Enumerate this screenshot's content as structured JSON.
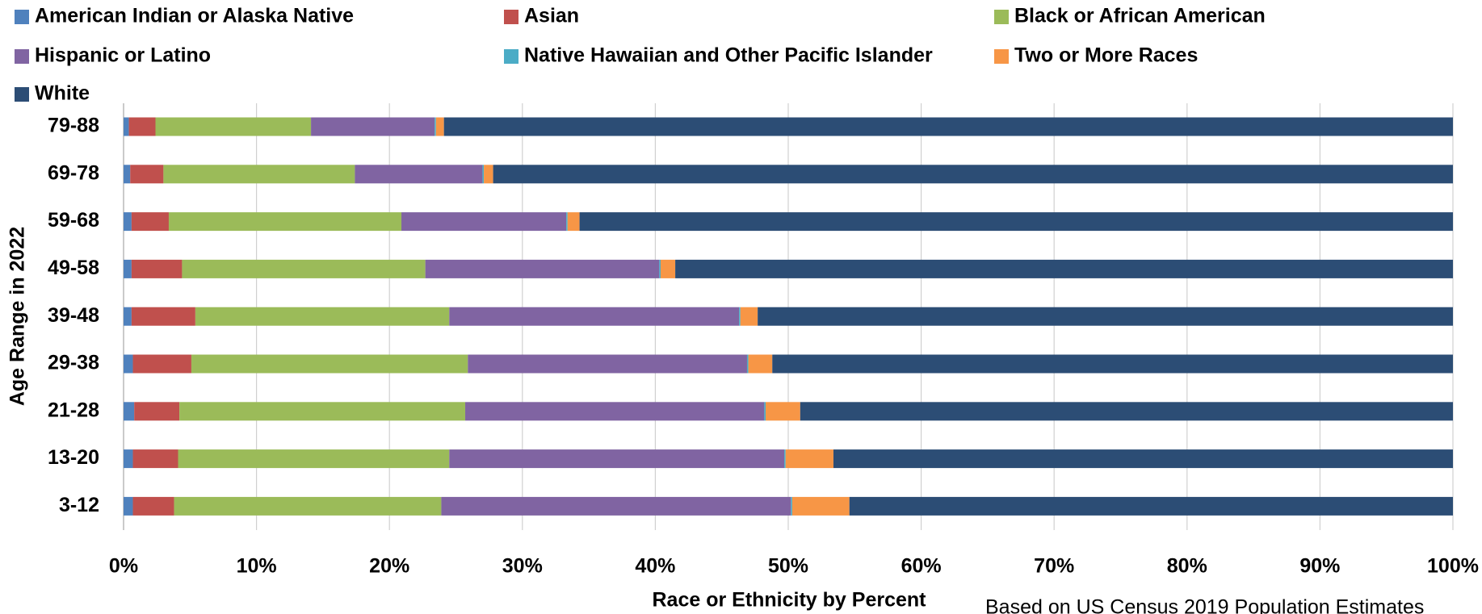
{
  "chart_data": {
    "type": "stacked_barh",
    "xlabel": "Race or Ethnicity by Percent",
    "ylabel": "Age Range in 2022",
    "note": "Based on US Census 2019 Population Estimates",
    "categories": [
      "79-88",
      "69-78",
      "59-68",
      "49-58",
      "39-48",
      "29-38",
      "21-28",
      "13-20",
      "3-12"
    ],
    "series": [
      {
        "name": "American Indian or Alaska Native",
        "color": "#4f81bd",
        "values": [
          0.4,
          0.5,
          0.6,
          0.6,
          0.6,
          0.7,
          0.8,
          0.7,
          0.7
        ]
      },
      {
        "name": "Asian",
        "color": "#c0504d",
        "values": [
          2.0,
          2.5,
          2.8,
          3.8,
          4.8,
          4.4,
          3.4,
          3.4,
          3.1
        ]
      },
      {
        "name": "Black or African American",
        "color": "#9bbb59",
        "values": [
          11.7,
          14.4,
          17.5,
          18.3,
          19.1,
          20.8,
          21.5,
          20.4,
          20.1
        ]
      },
      {
        "name": "Hispanic or Latino",
        "color": "#8064a2",
        "values": [
          9.3,
          9.6,
          12.4,
          17.6,
          21.8,
          21.0,
          22.5,
          25.2,
          26.3
        ]
      },
      {
        "name": "Native Hawaiian and Other Pacific Islander",
        "color": "#4bacc6",
        "values": [
          0.1,
          0.1,
          0.1,
          0.1,
          0.1,
          0.1,
          0.1,
          0.1,
          0.1
        ]
      },
      {
        "name": "Two or More Races",
        "color": "#f79646",
        "values": [
          0.6,
          0.7,
          0.9,
          1.1,
          1.3,
          1.8,
          2.6,
          3.6,
          4.3
        ]
      },
      {
        "name": "White",
        "color": "#2c4d75",
        "values": [
          75.9,
          72.2,
          65.7,
          58.5,
          52.3,
          51.2,
          49.1,
          46.6,
          45.4
        ]
      }
    ],
    "xlim": [
      0,
      100
    ],
    "xticks": [
      {
        "value": 0,
        "label": "0%"
      },
      {
        "value": 10,
        "label": "10%"
      },
      {
        "value": 20,
        "label": "20%"
      },
      {
        "value": 30,
        "label": "30%"
      },
      {
        "value": 40,
        "label": "40%"
      },
      {
        "value": 50,
        "label": "50%"
      },
      {
        "value": 60,
        "label": "60%"
      },
      {
        "value": 70,
        "label": "70%"
      },
      {
        "value": 80,
        "label": "80%"
      },
      {
        "value": 90,
        "label": "90%"
      },
      {
        "value": 100,
        "label": "100%"
      }
    ],
    "grid": true,
    "legend": "top"
  }
}
